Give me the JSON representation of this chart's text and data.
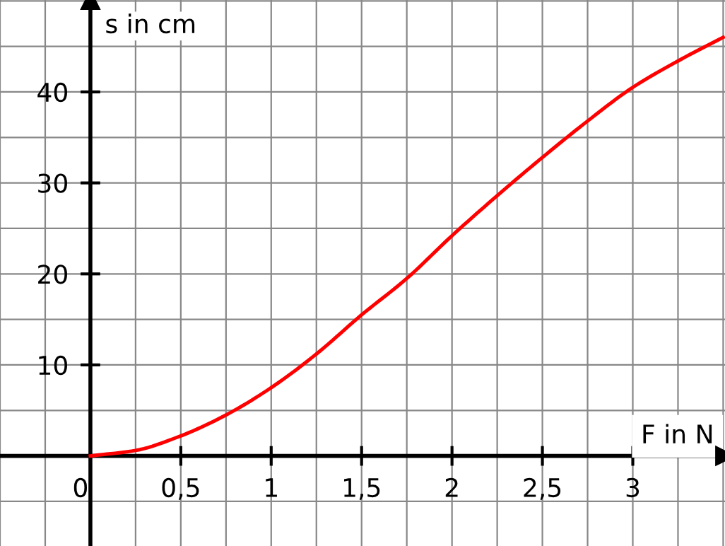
{
  "chart_data": {
    "type": "line",
    "xlabel": "F in N",
    "ylabel": "s in cm",
    "x": [
      0,
      0.25,
      0.5,
      0.75,
      1,
      1.25,
      1.5,
      1.75,
      2,
      2.25,
      2.5,
      2.75,
      3,
      3.25,
      3.5
    ],
    "series": [
      {
        "color": "#ff0000",
        "values": [
          0,
          0.6,
          2.2,
          4.5,
          7.5,
          11.2,
          15.5,
          19.5,
          24.2,
          28.6,
          32.8,
          36.8,
          40.5,
          43.4,
          46.0
        ]
      }
    ],
    "xlim": [
      -0.5,
      3.51
    ],
    "ylim": [
      -9.9,
      50.1
    ],
    "xticks": [
      0,
      {
        "value": 0.5,
        "label": "0,5"
      },
      1,
      {
        "value": 1.5,
        "label": "1,5"
      },
      2,
      {
        "value": 2.5,
        "label": "2,5"
      },
      3
    ],
    "yticks": [
      10,
      20,
      30,
      40
    ],
    "grid": true,
    "marker": "none",
    "line_style": "solid"
  }
}
